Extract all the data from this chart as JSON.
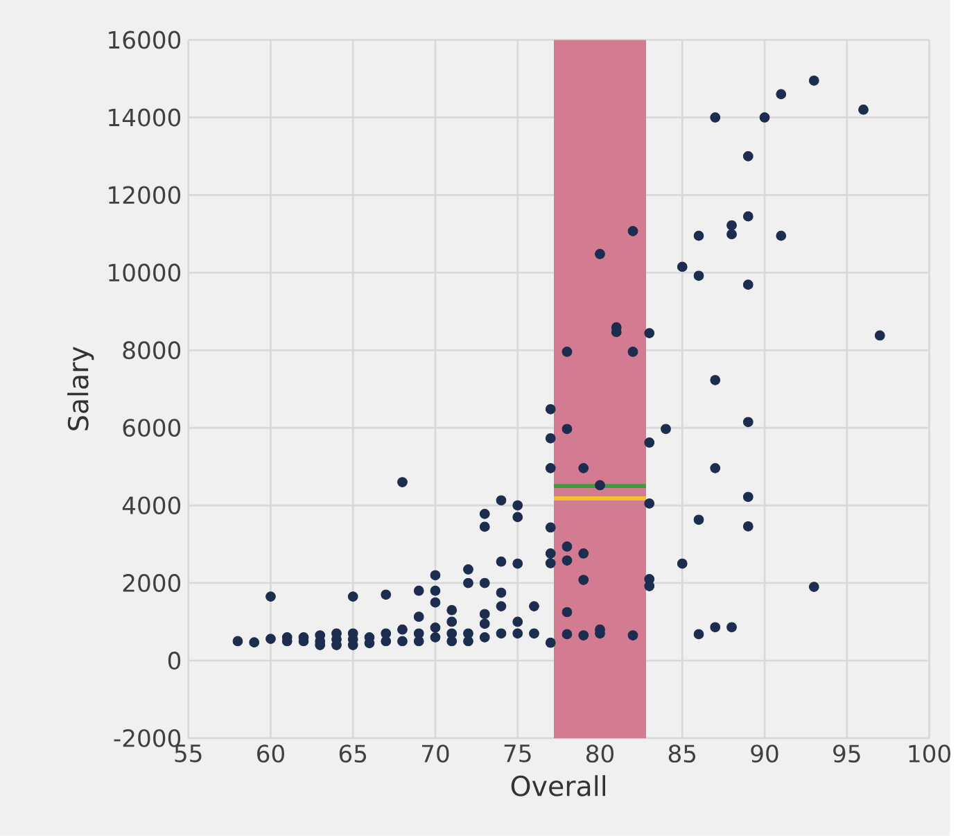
{
  "chart_data": {
    "type": "scatter",
    "xlabel": "Overall",
    "ylabel": "Salary",
    "xlim": [
      55,
      100
    ],
    "xticks": [
      55,
      60,
      65,
      70,
      75,
      80,
      85,
      90,
      95,
      100
    ],
    "ylim": [
      -2000,
      16000
    ],
    "yticks": [
      -2000,
      0,
      2000,
      4000,
      6000,
      8000,
      10000,
      12000,
      14000,
      16000
    ],
    "grid": true,
    "bands": [
      {
        "axis": "x",
        "from": 77.2,
        "to": 82.8,
        "color": "#d27b91"
      }
    ],
    "series": [
      {
        "marker": "circle",
        "color": "#1c2d4f",
        "x": [
          58,
          59,
          60,
          60,
          61,
          61,
          62,
          62,
          63,
          63,
          63,
          64,
          64,
          64,
          65,
          65,
          65,
          65,
          66,
          66,
          67,
          67,
          67,
          68,
          68,
          68,
          69,
          69,
          69,
          69,
          70,
          70,
          70,
          70,
          70,
          71,
          71,
          71,
          71,
          72,
          72,
          72,
          72,
          73,
          73,
          73,
          73,
          73,
          73,
          74,
          74,
          74,
          74,
          74,
          75,
          75,
          75,
          75,
          75,
          76,
          76,
          77,
          77,
          77,
          77,
          77,
          77,
          77,
          78,
          78,
          78,
          78,
          78,
          78,
          79,
          79,
          79,
          79,
          80,
          80,
          80,
          80,
          81,
          81,
          82,
          82,
          82,
          83,
          83,
          83,
          83,
          83,
          84,
          85,
          85,
          86,
          86,
          86,
          86,
          87,
          87,
          87,
          87,
          88,
          88,
          88,
          89,
          89,
          89,
          89,
          89,
          89,
          90,
          91,
          91,
          93,
          93,
          96,
          97
        ],
        "values": [
          500,
          470,
          1650,
          560,
          600,
          500,
          600,
          500,
          650,
          500,
          400,
          700,
          550,
          400,
          1650,
          700,
          550,
          400,
          600,
          450,
          1700,
          700,
          500,
          4600,
          800,
          500,
          1800,
          1130,
          700,
          500,
          2200,
          1800,
          1500,
          850,
          600,
          1300,
          1000,
          700,
          500,
          2350,
          2000,
          700,
          500,
          3780,
          3450,
          2000,
          1200,
          950,
          600,
          4130,
          2550,
          1750,
          1400,
          700,
          4000,
          3700,
          2500,
          1000,
          700,
          1400,
          700,
          6480,
          5730,
          4960,
          3430,
          2760,
          2510,
          460,
          7960,
          5970,
          2940,
          2580,
          1250,
          680,
          4960,
          2760,
          2080,
          650,
          10480,
          4520,
          800,
          700,
          8590,
          8470,
          11070,
          7960,
          650,
          8440,
          5620,
          4050,
          2100,
          1920,
          5970,
          10150,
          2500,
          10950,
          9920,
          3630,
          680,
          14000,
          7230,
          4960,
          860,
          11220,
          10990,
          860,
          13000,
          11450,
          9690,
          6150,
          4220,
          3460,
          14000,
          14600,
          10950,
          14950,
          1900,
          14200,
          8380
        ]
      },
      {
        "type": "line",
        "color": "#3f9b3f",
        "x": [
          77.2,
          82.8
        ],
        "values": [
          4500,
          4500
        ]
      },
      {
        "type": "line",
        "color": "#f2c12e",
        "x": [
          77.2,
          82.8
        ],
        "values": [
          4180,
          4180
        ]
      }
    ]
  }
}
